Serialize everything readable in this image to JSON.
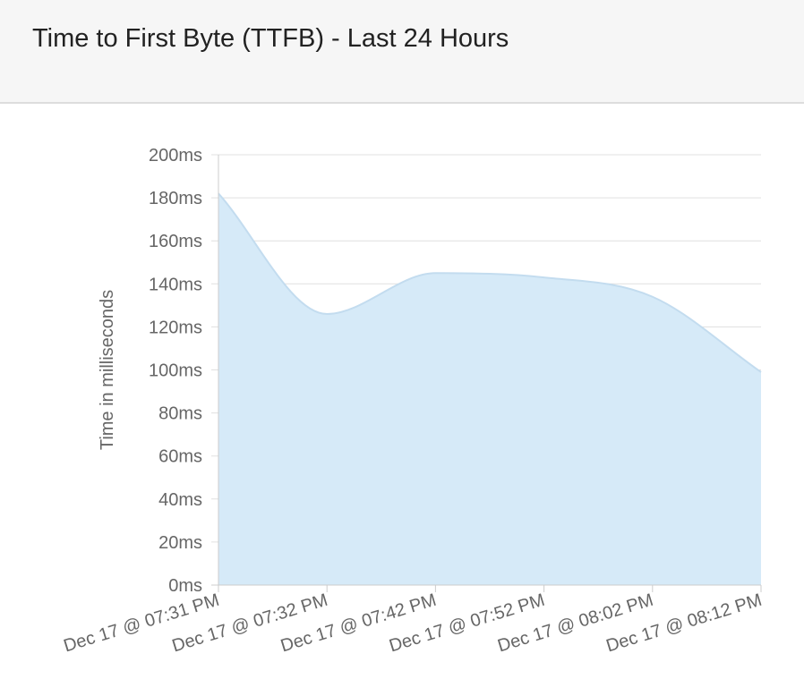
{
  "panel": {
    "title": "Time to First Byte (TTFB) - Last 24 Hours"
  },
  "chart_data": {
    "type": "area",
    "title": "",
    "xlabel": "",
    "ylabel": "Time in milliseconds",
    "y_unit_suffix": "ms",
    "ylim": [
      0,
      200
    ],
    "y_ticks": [
      0,
      20,
      40,
      60,
      80,
      100,
      120,
      140,
      160,
      180,
      200
    ],
    "grid": true,
    "legend": "none",
    "categories": [
      "Dec 17 @ 07:31 PM",
      "Dec 17 @ 07:32 PM",
      "Dec 17 @ 07:42 PM",
      "Dec 17 @ 07:52 PM",
      "Dec 17 @ 08:02 PM",
      "Dec 17 @ 08:12 PM"
    ],
    "series": [
      {
        "values": [
          182,
          126,
          145,
          143,
          134,
          99
        ],
        "fill_color": "#d6eaf8",
        "line_color": "#c3dcef"
      }
    ],
    "colors": {
      "grid": "#e0e0e0",
      "axis": "#cccccc",
      "tick_text": "#666666"
    }
  }
}
